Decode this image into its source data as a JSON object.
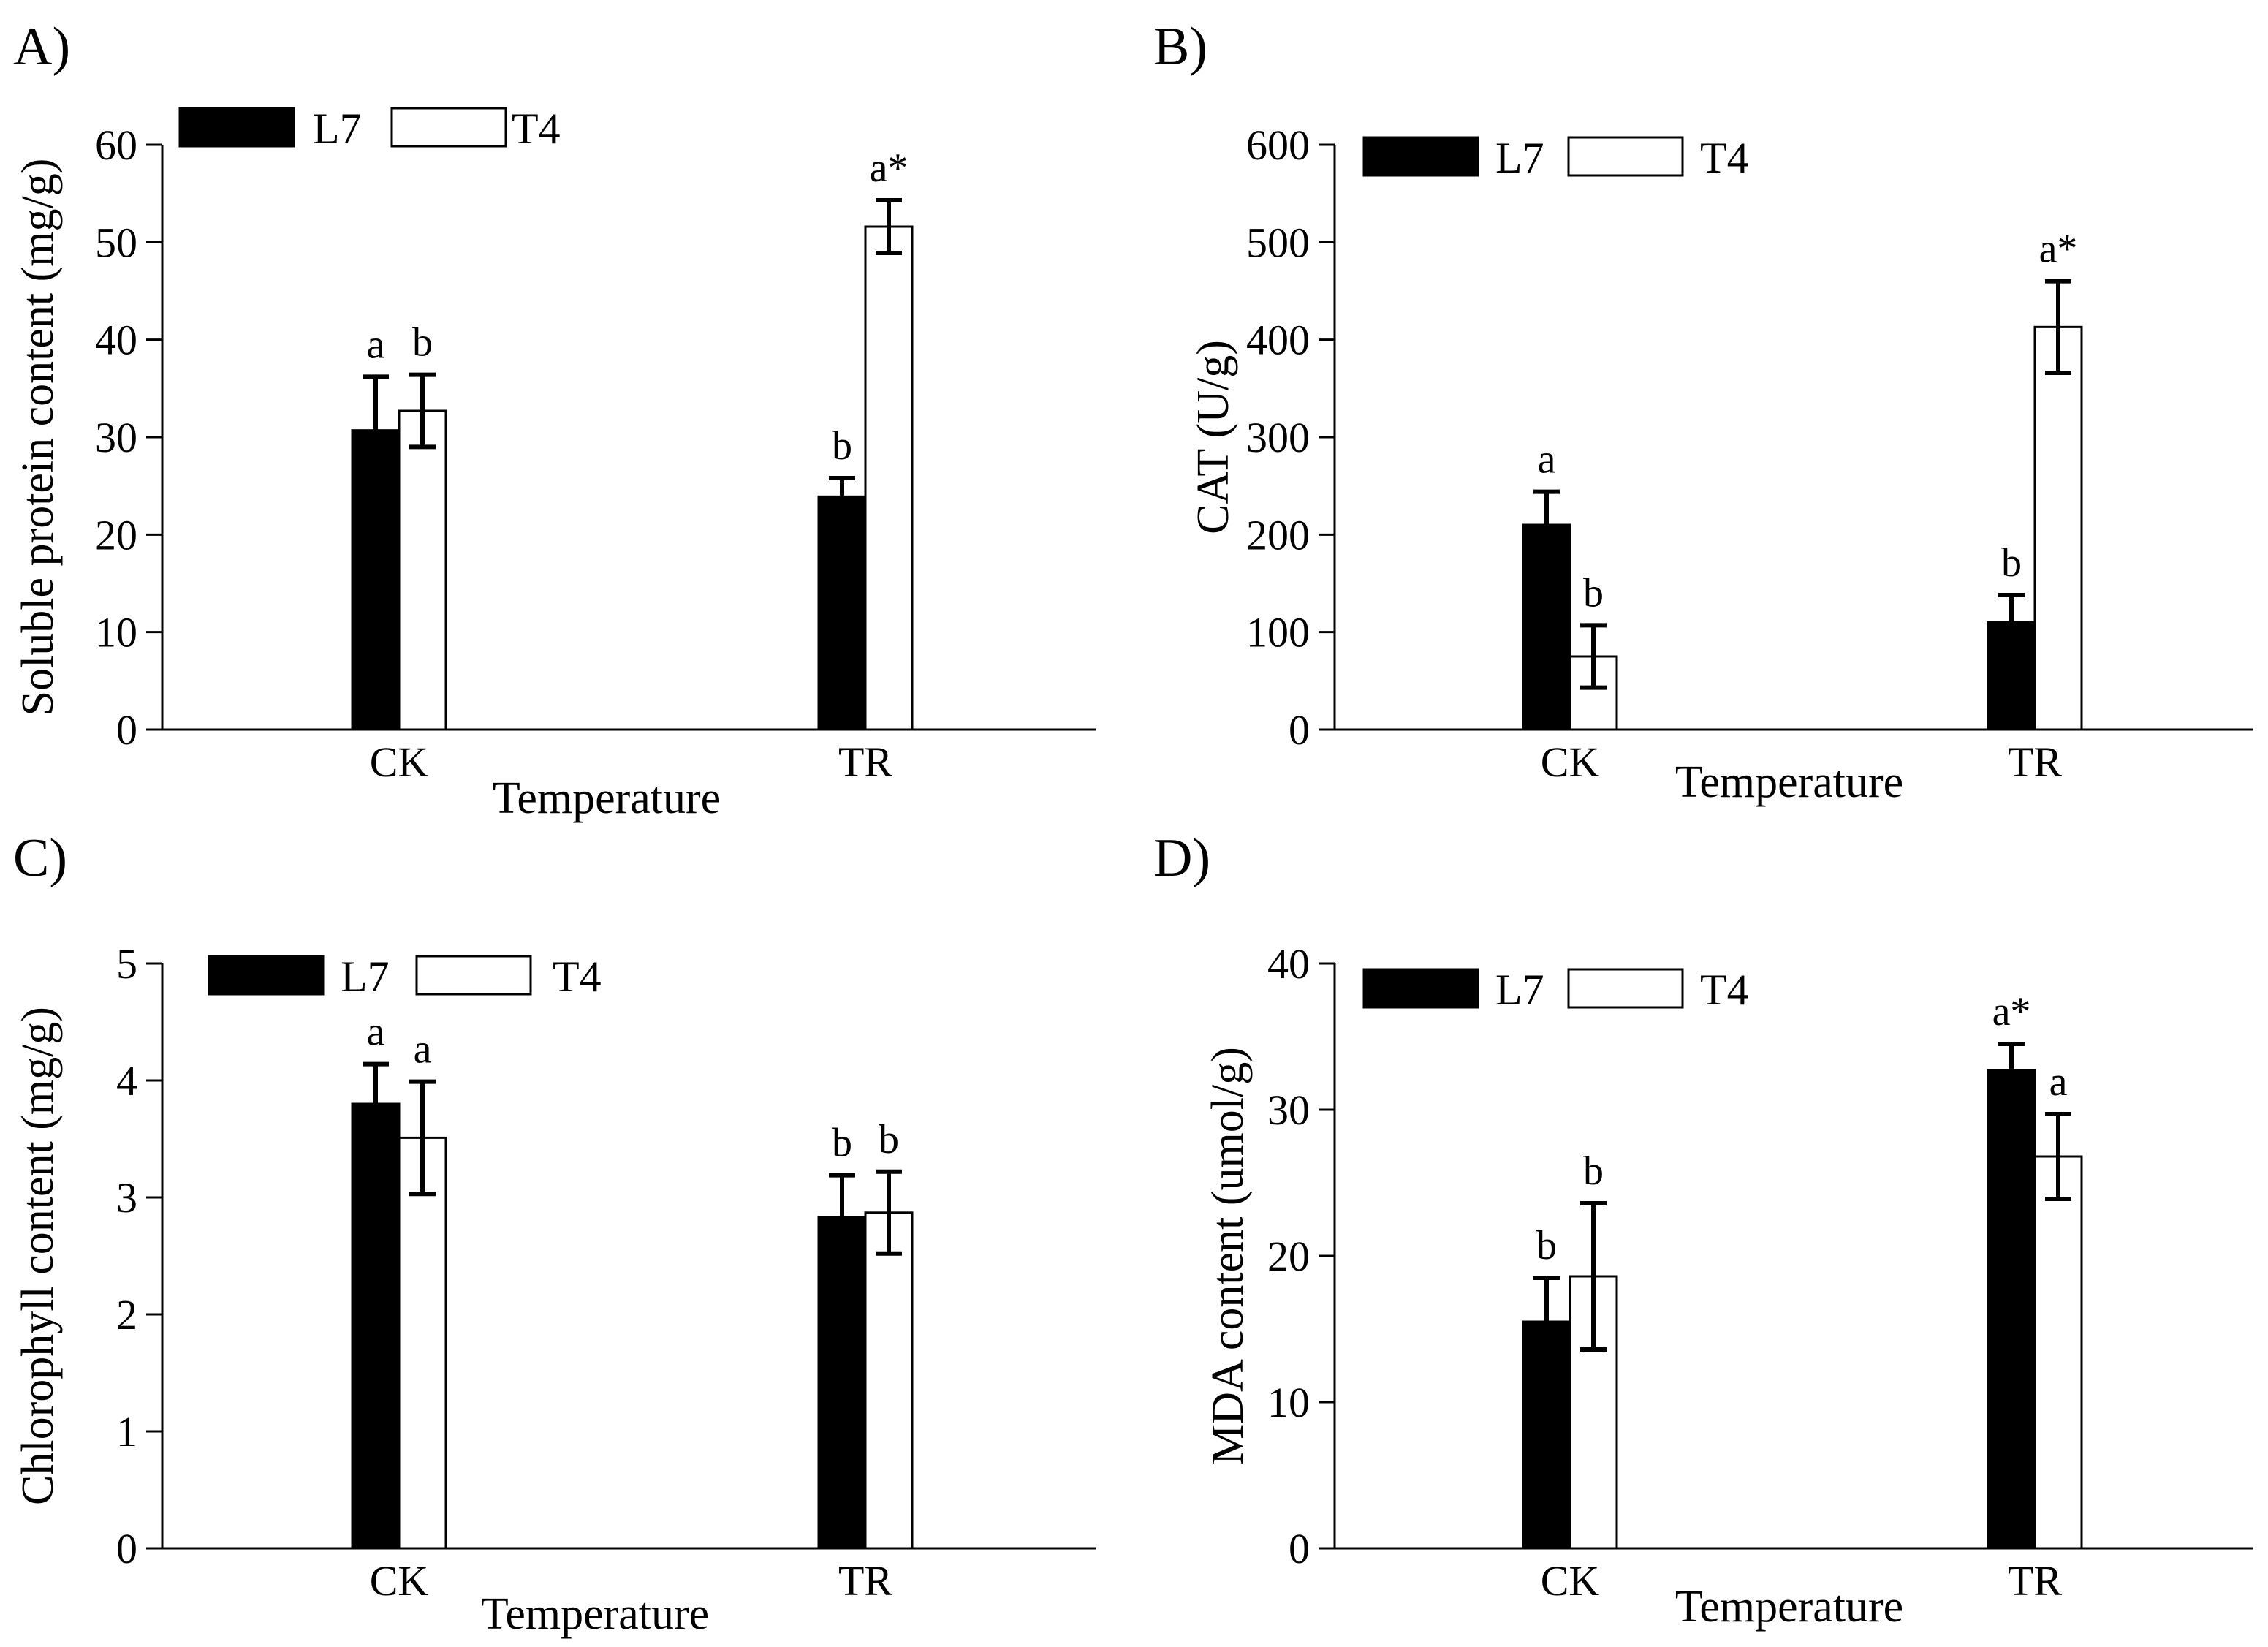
{
  "chart_data": [
    {
      "panel": "A)",
      "type": "bar",
      "categories": [
        "CK",
        "TR"
      ],
      "xlabel": "Temperature",
      "ylabel": "Soluble protein content (mg/g)",
      "ylim": [
        0,
        60
      ],
      "yticks": [
        0,
        10,
        20,
        30,
        40,
        50,
        60
      ],
      "legend_position": "top-left",
      "series": [
        {
          "name": "L7",
          "fill": "#000000",
          "values": [
            30.7,
            23.9
          ],
          "errors": [
            5.5,
            1.9
          ],
          "labels": [
            "a",
            "b"
          ]
        },
        {
          "name": "T4",
          "fill": "#ffffff",
          "values": [
            32.7,
            51.6
          ],
          "errors": [
            3.7,
            2.7
          ],
          "labels": [
            "b",
            "a*"
          ]
        }
      ]
    },
    {
      "panel": "B)",
      "type": "bar",
      "categories": [
        "CK",
        "TR"
      ],
      "xlabel": "Temperature",
      "ylabel": "CAT (U/g)",
      "ylim": [
        0,
        600
      ],
      "yticks": [
        0,
        100,
        200,
        300,
        400,
        500,
        600
      ],
      "legend_position": "top-left",
      "series": [
        {
          "name": "L7",
          "fill": "#000000",
          "values": [
            210,
            110
          ],
          "errors": [
            34,
            28
          ],
          "labels": [
            "a",
            "b"
          ]
        },
        {
          "name": "T4",
          "fill": "#ffffff",
          "values": [
            75,
            413
          ],
          "errors": [
            32,
            47
          ],
          "labels": [
            "b",
            "a*"
          ]
        }
      ]
    },
    {
      "panel": "C)",
      "type": "bar",
      "categories": [
        "CK",
        "TR"
      ],
      "xlabel": "Temperature",
      "ylabel": "Chlorophyll content (mg/g)",
      "ylim": [
        0,
        5
      ],
      "yticks": [
        0,
        1,
        2,
        3,
        4,
        5
      ],
      "legend_position": "top-left",
      "series": [
        {
          "name": "L7",
          "fill": "#000000",
          "values": [
            3.8,
            2.83
          ],
          "errors": [
            0.34,
            0.36
          ],
          "labels": [
            "a",
            "b"
          ]
        },
        {
          "name": "T4",
          "fill": "#ffffff",
          "values": [
            3.51,
            2.87
          ],
          "errors": [
            0.48,
            0.35
          ],
          "labels": [
            "a",
            "b"
          ]
        }
      ]
    },
    {
      "panel": "D)",
      "type": "bar",
      "categories": [
        "CK",
        "TR"
      ],
      "xlabel": "Temperature",
      "ylabel": "MDA content (umol/g)",
      "ylim": [
        0,
        40
      ],
      "yticks": [
        0,
        10,
        20,
        30,
        40
      ],
      "legend_position": "top-left",
      "series": [
        {
          "name": "L7",
          "fill": "#000000",
          "values": [
            15.5,
            32.7
          ],
          "errors": [
            3.0,
            1.8
          ],
          "labels": [
            "b",
            "a*"
          ]
        },
        {
          "name": "T4",
          "fill": "#ffffff",
          "values": [
            18.6,
            26.8
          ],
          "errors": [
            5.0,
            2.9
          ],
          "labels": [
            "b",
            "a"
          ]
        }
      ]
    }
  ]
}
